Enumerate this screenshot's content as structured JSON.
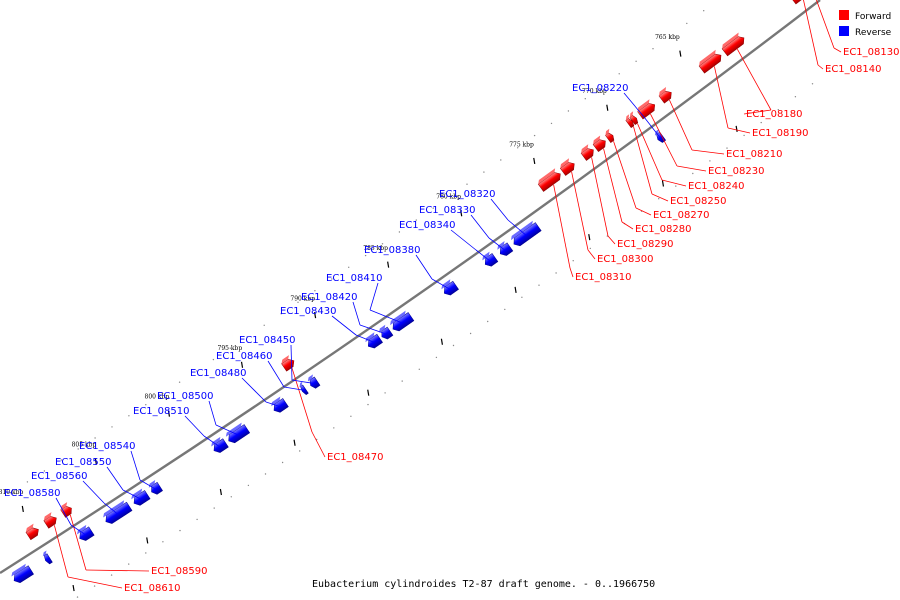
{
  "caption": "Eubacterium cylindroides T2-87 draft genome. - 0..1966750",
  "legend": [
    {
      "label": "Forward",
      "color": "#ff0000"
    },
    {
      "label": "Reverse",
      "color": "#0000ff"
    }
  ],
  "colors": {
    "forward": "#ff0000",
    "reverse": "#0000ff",
    "backbone": "#777777"
  },
  "scale_ticks": [
    {
      "kbp": 765,
      "label": "765 kbp"
    },
    {
      "kbp": 770,
      "label": "770 kbp"
    },
    {
      "kbp": 775,
      "label": "775 kbp"
    },
    {
      "kbp": 780,
      "label": "780 kbp"
    },
    {
      "kbp": 785,
      "label": "785 kbp"
    },
    {
      "kbp": 790,
      "label": "790 kbp"
    },
    {
      "kbp": 795,
      "label": "795 kbp"
    },
    {
      "kbp": 800,
      "label": "800 kbp"
    },
    {
      "kbp": 805,
      "label": "805 kbp"
    },
    {
      "kbp": 810,
      "label": "810 kbp"
    }
  ],
  "forward_genes": [
    {
      "label": "EC1_08130"
    },
    {
      "label": "EC1_08140"
    },
    {
      "label": "EC1_08180"
    },
    {
      "label": "EC1_08190"
    },
    {
      "label": "EC1_08210"
    },
    {
      "label": "EC1_08230"
    },
    {
      "label": "EC1_08240"
    },
    {
      "label": "EC1_08250"
    },
    {
      "label": "EC1_08270"
    },
    {
      "label": "EC1_08280"
    },
    {
      "label": "EC1_08290"
    },
    {
      "label": "EC1_08300"
    },
    {
      "label": "EC1_08310"
    },
    {
      "label": "EC1_08470"
    },
    {
      "label": "EC1_08590"
    },
    {
      "label": "EC1_08610"
    }
  ],
  "reverse_genes": [
    {
      "label": "EC1_08220"
    },
    {
      "label": "EC1_08320"
    },
    {
      "label": "EC1_08330"
    },
    {
      "label": "EC1_08340"
    },
    {
      "label": "EC1_08380"
    },
    {
      "label": "EC1_08410"
    },
    {
      "label": "EC1_08420"
    },
    {
      "label": "EC1_08430"
    },
    {
      "label": "EC1_08450"
    },
    {
      "label": "EC1_08460"
    },
    {
      "label": "EC1_08480"
    },
    {
      "label": "EC1_08500"
    },
    {
      "label": "EC1_08510"
    },
    {
      "label": "EC1_08540"
    },
    {
      "label": "EC1_08550"
    },
    {
      "label": "EC1_08560"
    },
    {
      "label": "EC1_08580"
    }
  ]
}
